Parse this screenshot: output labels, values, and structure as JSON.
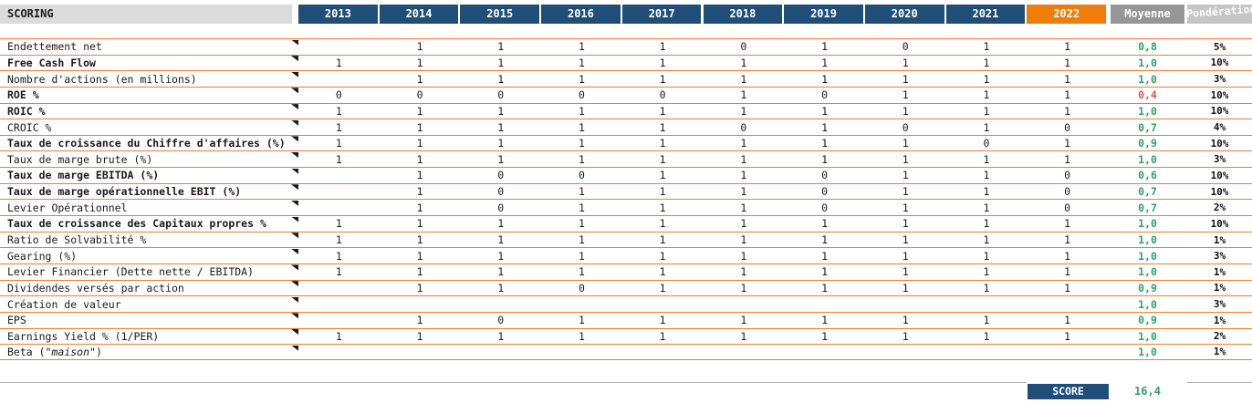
{
  "title": "SCORING",
  "columns": {
    "years": [
      "2013",
      "2014",
      "2015",
      "2016",
      "2017",
      "2018",
      "2019",
      "2020",
      "2021",
      "2022"
    ],
    "current_year": "2022",
    "average": "Moyenne",
    "weight": "Pondération"
  },
  "rows": [
    {
      "label": "Endettement net",
      "bold": false,
      "comment": true,
      "values": [
        "",
        "1",
        "1",
        "1",
        "1",
        "0",
        "1",
        "0",
        "1",
        "1"
      ],
      "average": "0,8",
      "average_state": "good",
      "weight": "5%"
    },
    {
      "label": "Free Cash Flow",
      "bold": true,
      "comment": true,
      "values": [
        "1",
        "1",
        "1",
        "1",
        "1",
        "1",
        "1",
        "1",
        "1",
        "1"
      ],
      "average": "1,0",
      "average_state": "good",
      "weight": "10%"
    },
    {
      "label": "Nombre d'actions (en millions)",
      "bold": false,
      "comment": true,
      "values": [
        "",
        "1",
        "1",
        "1",
        "1",
        "1",
        "1",
        "1",
        "1",
        "1"
      ],
      "average": "1,0",
      "average_state": "good",
      "weight": "3%"
    },
    {
      "label": "ROE %",
      "bold": true,
      "comment": true,
      "values": [
        "0",
        "0",
        "0",
        "0",
        "0",
        "1",
        "0",
        "1",
        "1",
        "1"
      ],
      "average": "0,4",
      "average_state": "bad",
      "weight": "10%"
    },
    {
      "label": "ROIC %",
      "bold": true,
      "comment": true,
      "values": [
        "1",
        "1",
        "1",
        "1",
        "1",
        "1",
        "1",
        "1",
        "1",
        "1"
      ],
      "average": "1,0",
      "average_state": "good",
      "weight": "10%"
    },
    {
      "label": "CROIC %",
      "bold": false,
      "comment": true,
      "values": [
        "1",
        "1",
        "1",
        "1",
        "1",
        "0",
        "1",
        "0",
        "1",
        "0"
      ],
      "average": "0,7",
      "average_state": "good",
      "weight": "4%"
    },
    {
      "label": "Taux de croissance du Chiffre d'affaires (%)",
      "bold": true,
      "comment": true,
      "values": [
        "1",
        "1",
        "1",
        "1",
        "1",
        "1",
        "1",
        "1",
        "0",
        "1"
      ],
      "average": "0,9",
      "average_state": "good",
      "weight": "10%"
    },
    {
      "label": "Taux de marge brute (%)",
      "bold": false,
      "comment": true,
      "values": [
        "1",
        "1",
        "1",
        "1",
        "1",
        "1",
        "1",
        "1",
        "1",
        "1"
      ],
      "average": "1,0",
      "average_state": "good",
      "weight": "3%"
    },
    {
      "label": "Taux de marge EBITDA (%)",
      "bold": true,
      "comment": true,
      "values": [
        "",
        "1",
        "0",
        "0",
        "1",
        "1",
        "0",
        "1",
        "1",
        "0"
      ],
      "average": "0,6",
      "average_state": "good",
      "weight": "10%"
    },
    {
      "label": "Taux de marge opérationnelle EBIT (%)",
      "bold": true,
      "comment": true,
      "values": [
        "",
        "1",
        "0",
        "1",
        "1",
        "1",
        "0",
        "1",
        "1",
        "0"
      ],
      "average": "0,7",
      "average_state": "good",
      "weight": "10%"
    },
    {
      "label": "Levier Opérationnel",
      "bold": false,
      "comment": true,
      "values": [
        "",
        "1",
        "0",
        "1",
        "1",
        "1",
        "0",
        "1",
        "1",
        "0"
      ],
      "average": "0,7",
      "average_state": "good",
      "weight": "2%"
    },
    {
      "label": "Taux de croissance des Capitaux propres %",
      "bold": true,
      "comment": true,
      "values": [
        "1",
        "1",
        "1",
        "1",
        "1",
        "1",
        "1",
        "1",
        "1",
        "1"
      ],
      "average": "1,0",
      "average_state": "good",
      "weight": "10%"
    },
    {
      "label": "Ratio de Solvabilité %",
      "bold": false,
      "comment": true,
      "values": [
        "1",
        "1",
        "1",
        "1",
        "1",
        "1",
        "1",
        "1",
        "1",
        "1"
      ],
      "average": "1,0",
      "average_state": "good",
      "weight": "1%"
    },
    {
      "label": "Gearing (%)",
      "bold": false,
      "comment": true,
      "values": [
        "1",
        "1",
        "1",
        "1",
        "1",
        "1",
        "1",
        "1",
        "1",
        "1"
      ],
      "average": "1,0",
      "average_state": "good",
      "weight": "3%"
    },
    {
      "label": "Levier Financier (Dette nette / EBITDA)",
      "bold": false,
      "comment": true,
      "values": [
        "1",
        "1",
        "1",
        "1",
        "1",
        "1",
        "1",
        "1",
        "1",
        "1"
      ],
      "average": "1,0",
      "average_state": "good",
      "weight": "1%"
    },
    {
      "label": "Dividendes versés par action",
      "bold": false,
      "comment": true,
      "values": [
        "",
        "1",
        "1",
        "0",
        "1",
        "1",
        "1",
        "1",
        "1",
        "1"
      ],
      "average": "0,9",
      "average_state": "good",
      "weight": "1%"
    },
    {
      "label": "Création de valeur",
      "bold": false,
      "comment": true,
      "values": [
        "",
        "",
        "",
        "",
        "",
        "",
        "",
        "",
        "",
        ""
      ],
      "average": "1,0",
      "average_state": "good",
      "weight": "3%"
    },
    {
      "label": "EPS",
      "bold": false,
      "comment": true,
      "values": [
        "",
        "1",
        "0",
        "1",
        "1",
        "1",
        "1",
        "1",
        "1",
        "1"
      ],
      "average": "0,9",
      "average_state": "good",
      "weight": "1%"
    },
    {
      "label": "Earnings Yield % (1/PER)",
      "bold": false,
      "comment": true,
      "values": [
        "1",
        "1",
        "1",
        "1",
        "1",
        "1",
        "1",
        "1",
        "1",
        "1"
      ],
      "average": "1,0",
      "average_state": "good",
      "weight": "2%"
    },
    {
      "label": "Beta (\"maison\")",
      "bold": false,
      "comment": true,
      "italic_inner": "maison",
      "values": [
        "",
        "",
        "",
        "",
        "",
        "",
        "",
        "",
        "",
        ""
      ],
      "average": "1,0",
      "average_state": "good",
      "weight": "1%"
    }
  ],
  "score": {
    "label": "SCORE",
    "value": "16,4"
  },
  "colors": {
    "row_border_orange": "#ED7D31",
    "header_blue": "#1F4E79",
    "current_year_orange": "#F07D0A",
    "average_header_grey": "#969696",
    "weight_header_grey": "#C6C6C6",
    "good_green": "#2FA266",
    "bad_red": "#E8534D",
    "title_band_grey": "#DBDBDB"
  }
}
